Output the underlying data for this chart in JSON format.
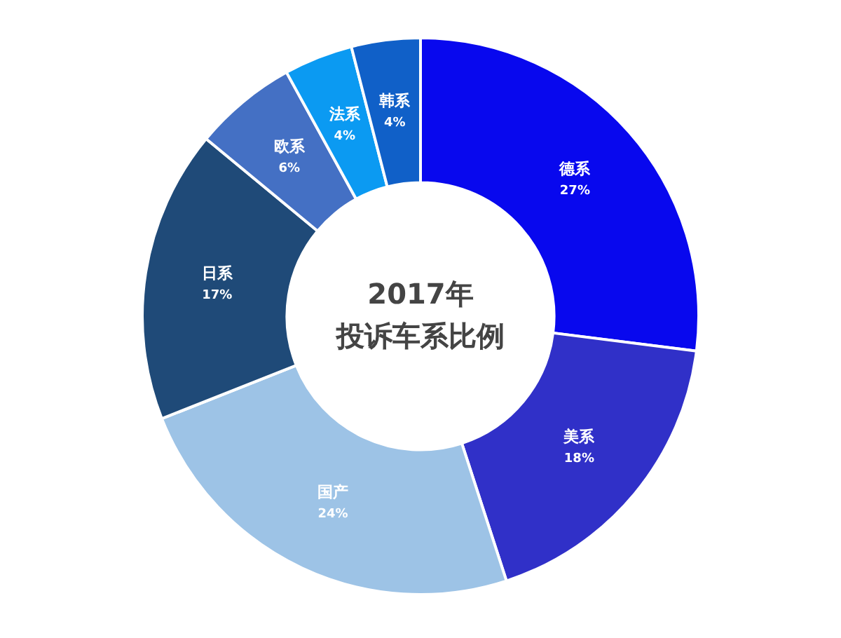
{
  "chart_data": {
    "type": "donut",
    "title": "2017年",
    "subtitle": "投诉车系比例",
    "categories": [
      "德系",
      "美系",
      "国产",
      "日系",
      "欧系",
      "法系",
      "韩系"
    ],
    "values": [
      27,
      18,
      24,
      17,
      6,
      4,
      4
    ],
    "value_labels": [
      "27%",
      "18%",
      "24%",
      "17%",
      "6%",
      "4%",
      "4%"
    ],
    "colors": [
      "#0808ee",
      "#3030c8",
      "#9dc3e6",
      "#1f4a78",
      "#4470c4",
      "#0b9af2",
      "#1060c8"
    ],
    "legend": false
  }
}
